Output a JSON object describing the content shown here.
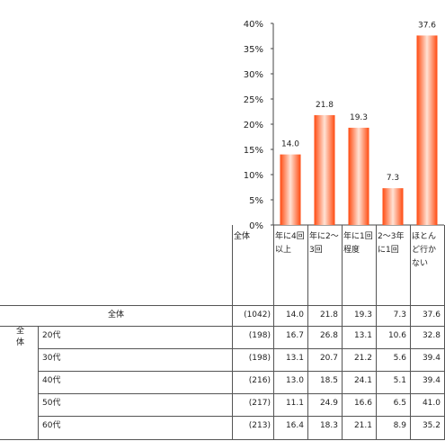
{
  "chart_data": {
    "type": "bar",
    "categories": [
      "年に4回\n以上",
      "年に2〜\n3回",
      "年に1回\n程度",
      "2〜3年\nに1回",
      "ほとん\nど行か\nない"
    ],
    "values": [
      14.0,
      21.8,
      19.3,
      7.3,
      37.6
    ],
    "value_labels": [
      "14.0",
      "21.8",
      "19.3",
      "7.3",
      "37.6"
    ],
    "ylim": [
      0,
      40
    ],
    "yticks": [
      "0%",
      "5%",
      "10%",
      "15%",
      "20%",
      "25%",
      "30%",
      "35%",
      "40%"
    ],
    "grid": false,
    "bar_color": "#ff5a1f"
  },
  "table": {
    "header_label": "全体",
    "group_label": "全\n体",
    "rows": [
      {
        "label": "全体",
        "n": "(1042)",
        "values": [
          "14.0",
          "21.8",
          "19.3",
          "7.3",
          "37.6"
        ]
      },
      {
        "label": "20代",
        "n": "(198)",
        "values": [
          "16.7",
          "26.8",
          "13.1",
          "10.6",
          "32.8"
        ]
      },
      {
        "label": "30代",
        "n": "(198)",
        "values": [
          "13.1",
          "20.7",
          "21.2",
          "5.6",
          "39.4"
        ]
      },
      {
        "label": "40代",
        "n": "(216)",
        "values": [
          "13.0",
          "18.5",
          "24.1",
          "5.1",
          "39.4"
        ]
      },
      {
        "label": "50代",
        "n": "(217)",
        "values": [
          "11.1",
          "24.9",
          "16.6",
          "6.5",
          "41.0"
        ]
      },
      {
        "label": "60代",
        "n": "(213)",
        "values": [
          "16.4",
          "18.3",
          "21.1",
          "8.9",
          "35.2"
        ]
      }
    ]
  }
}
